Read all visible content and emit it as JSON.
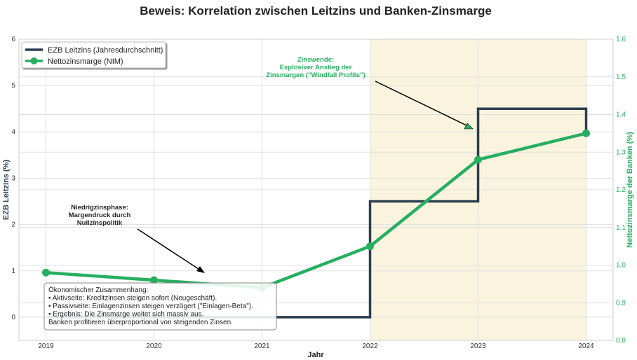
{
  "chart_data": {
    "type": "line",
    "title": "Beweis: Korrelation zwischen Leitzins und Banken-Zinsmarge",
    "xlabel": "Jahr",
    "ylabel_left": "EZB Leitzins (%)",
    "ylabel_right": "Nettozinsmarge der Banken (%)",
    "x": [
      2019,
      2020,
      2021,
      2022,
      2023,
      2024
    ],
    "xlim": [
      2018.75,
      2024.25
    ],
    "ylim_left": [
      -0.5,
      6
    ],
    "ylim_right": [
      0.8,
      1.6
    ],
    "yticks_left": [
      0,
      1,
      2,
      3,
      4,
      5,
      6
    ],
    "yticks_right": [
      "0.8",
      "0.9",
      "1.0",
      "1.1",
      "1.2",
      "1.3",
      "1.4",
      "1.5",
      "1.6"
    ],
    "grid": true,
    "legend_position": "top-left",
    "series": [
      {
        "name": "EZB Leitzins (Jahresdurchschnitt)",
        "axis": "left",
        "style": "steps-post",
        "color": "#2c3e50",
        "values": [
          0,
          0,
          0,
          2.5,
          4.5,
          4.0
        ]
      },
      {
        "name": "Nettozinsmarge (NIM)",
        "axis": "right",
        "style": "line-markers",
        "color": "#27ae60",
        "values": [
          0.98,
          0.96,
          0.94,
          1.05,
          1.28,
          1.35
        ]
      }
    ],
    "shaded_region": {
      "x": [
        2022,
        2024
      ],
      "color": "#f5e6b8"
    },
    "annotations": [
      {
        "lines": [
          "Niedrigzinsphase:",
          "Margendruck durch",
          "Nullzinspolitik"
        ],
        "color": "#222222"
      },
      {
        "lines": [
          "Zinswende:",
          "Explosiver Anstieg der",
          "Zinsmargen (\"Windfall Profits\")"
        ],
        "color": "#27ae60"
      }
    ],
    "textbox": [
      "Ökonomischer Zusammenhang:",
      "• Aktivseite: Kreditzinsen steigen sofort (Neugeschäft).",
      "• Passivseite: Einlagenzinsen steigen verzögert (\"Einlagen-Beta\").",
      "• Ergebnis: Die Zinsmarge weitet sich massiv aus.",
      "Banken profitieren überproportional von steigenden Zinsen."
    ]
  }
}
